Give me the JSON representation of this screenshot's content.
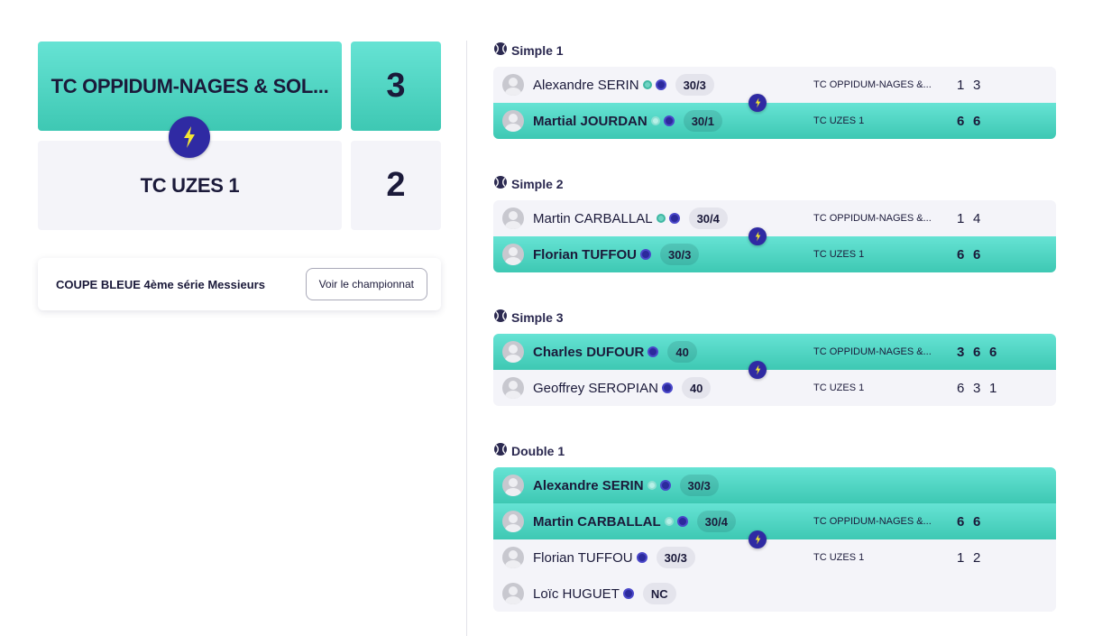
{
  "encounter": {
    "home": {
      "name": "TC OPPIDUM-NAGES & SOL...",
      "score": "3",
      "status": "winner"
    },
    "away": {
      "name": "TC UZES 1",
      "score": "2",
      "status": "loser"
    }
  },
  "competition": {
    "title": "COUPE BLEUE 4ème série Messieurs",
    "button_label": "Voir le championnat"
  },
  "colors": {
    "winner_gradient_top": "#66e3d4",
    "winner_gradient_bottom": "#3ec8b3",
    "loser_bg": "#f4f4f9",
    "badge_navy": "#2f2aa3",
    "bolt_yellow": "#f3e634",
    "text_dark": "#1b1a3a"
  },
  "matches": [
    {
      "title": "Simple 1",
      "icon": "tennis-ball-icon",
      "rows": [
        {
          "player": "Alexandre SERIN",
          "rank": "30/3",
          "club": "TC OPPIDUM-NAGES &...",
          "sets": [
            "1",
            "3"
          ],
          "winner": false,
          "dots": [
            "teal",
            "navy"
          ]
        },
        {
          "player": "Martial JOURDAN",
          "rank": "30/1",
          "club": "TC UZES 1",
          "sets": [
            "6",
            "6"
          ],
          "winner": true,
          "dots": [
            "teal",
            "navy"
          ]
        }
      ]
    },
    {
      "title": "Simple 2",
      "icon": "tennis-ball-icon",
      "rows": [
        {
          "player": "Martin CARBALLAL",
          "rank": "30/4",
          "club": "TC OPPIDUM-NAGES &...",
          "sets": [
            "1",
            "4"
          ],
          "winner": false,
          "dots": [
            "teal",
            "navy"
          ]
        },
        {
          "player": "Florian TUFFOU",
          "rank": "30/3",
          "club": "TC UZES 1",
          "sets": [
            "6",
            "6"
          ],
          "winner": true,
          "dots": [
            "navy"
          ]
        }
      ]
    },
    {
      "title": "Simple 3",
      "icon": "tennis-ball-icon",
      "rows": [
        {
          "player": "Charles DUFOUR",
          "rank": "40",
          "club": "TC OPPIDUM-NAGES &...",
          "sets": [
            "3",
            "6",
            "6"
          ],
          "winner": true,
          "dots": [
            "navy"
          ]
        },
        {
          "player": "Geoffrey SEROPIAN",
          "rank": "40",
          "club": "TC UZES 1",
          "sets": [
            "6",
            "3",
            "1"
          ],
          "winner": false,
          "dots": [
            "navy"
          ]
        }
      ]
    },
    {
      "title": "Double 1",
      "icon": "tennis-ball-icon",
      "rows": [
        {
          "player": "Alexandre SERIN",
          "rank": "30/3",
          "club": "",
          "sets": [],
          "winner": true,
          "dots": [
            "teal",
            "navy"
          ]
        },
        {
          "player": "Martin CARBALLAL",
          "rank": "30/4",
          "club": "TC OPPIDUM-NAGES &...",
          "sets": [
            "6",
            "6"
          ],
          "winner": true,
          "dots": [
            "teal",
            "navy"
          ]
        },
        {
          "player": "Florian TUFFOU",
          "rank": "30/3",
          "club": "TC UZES 1",
          "sets": [
            "1",
            "2"
          ],
          "winner": false,
          "dots": [
            "navy"
          ]
        },
        {
          "player": "Loïc HUGUET",
          "rank": "NC",
          "club": "",
          "sets": [],
          "winner": false,
          "dots": [
            "navy"
          ]
        }
      ]
    }
  ]
}
